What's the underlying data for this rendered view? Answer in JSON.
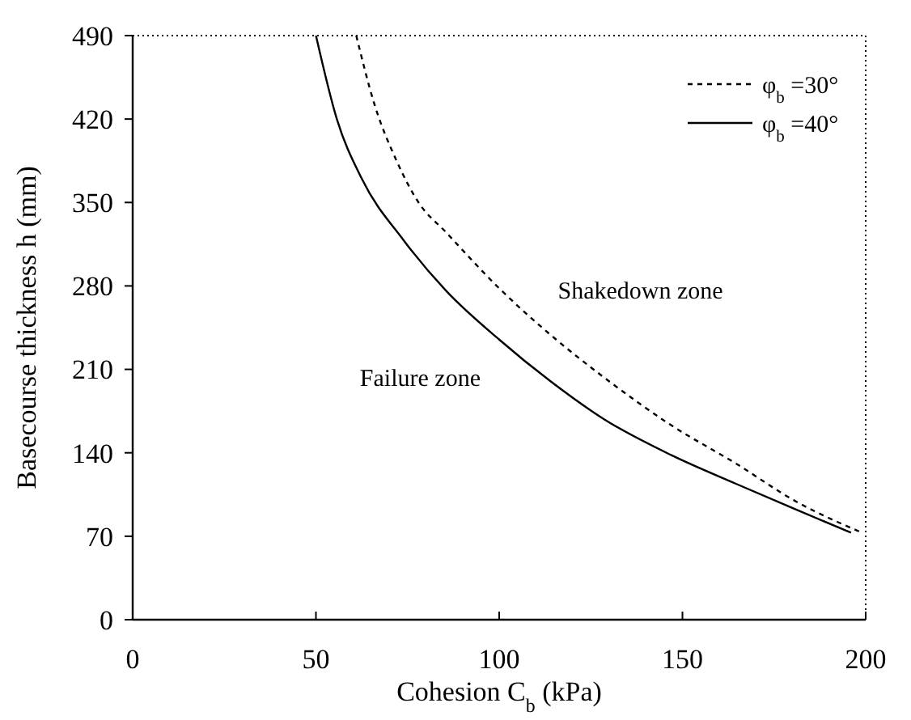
{
  "chart_data": {
    "type": "line",
    "xlabel": "Cohesion  C$_{b}$ (kPa)",
    "ylabel": "Basecourse thickness  h (mm)",
    "xlim": [
      0,
      200
    ],
    "xticks": [
      0,
      50,
      100,
      150,
      200
    ],
    "ylim": [
      0,
      490
    ],
    "yticks": [
      0,
      70,
      140,
      210,
      280,
      350,
      420,
      490
    ],
    "legend": "top right",
    "grid": false,
    "marker": "none",
    "annotations": [
      "Shakedown zone",
      "Failure zone"
    ],
    "series": [
      {
        "name": "φ$_{b}$ =30°",
        "color": "#000000",
        "line_style": "dotted",
        "x": [
          61,
          66,
          72,
          78,
          85.5,
          100,
          114,
          128.7,
          147,
          164.6,
          180.5,
          199
        ],
        "values": [
          490,
          432,
          385,
          350,
          325,
          278,
          239,
          203,
          163,
          131,
          100,
          73
        ]
      },
      {
        "name": "φ$_{b}$ =40°",
        "color": "#000000",
        "line_style": "solid",
        "x": [
          50,
          55.7,
          62.5,
          74,
          85.5,
          100,
          114,
          128.7,
          147,
          164.6,
          180.5,
          196
        ],
        "values": [
          490,
          420,
          370,
          318,
          276,
          235,
          200,
          168,
          138,
          114,
          93,
          73
        ]
      }
    ]
  }
}
